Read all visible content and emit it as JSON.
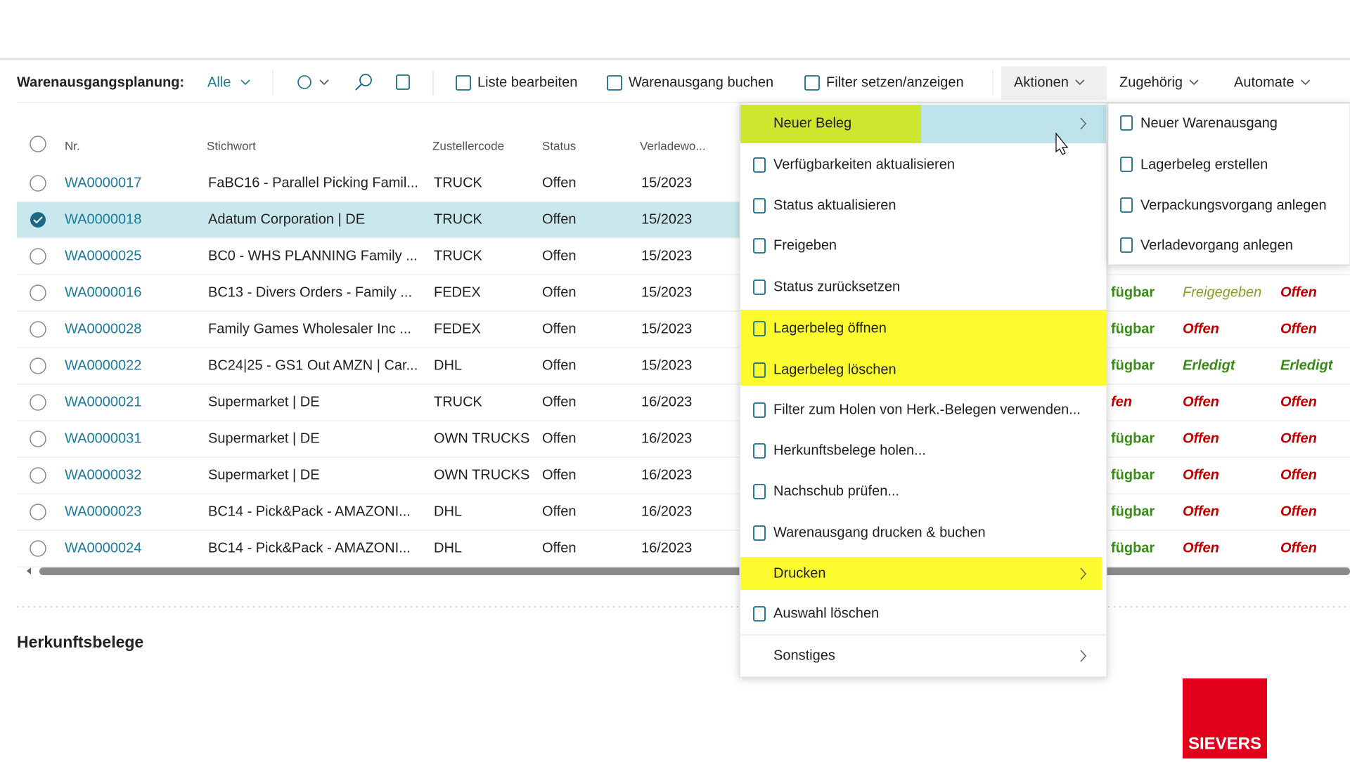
{
  "toolbar": {
    "title": "Warenausgangsplanung:",
    "view": "Alle",
    "buttons": [
      "Liste bearbeiten",
      "Warenausgang buchen",
      "Filter setzen/anzeigen"
    ],
    "menus": [
      "Aktionen",
      "Zugehörig",
      "Automate"
    ]
  },
  "table": {
    "headers": [
      "Nr.",
      "Stichwort",
      "Zustellercode",
      "Status",
      "Verladewo..."
    ],
    "rows": [
      [
        "WA0000017",
        "FaBC16 - Parallel Picking Famil...",
        "TRUCK",
        "Offen",
        "15/2023"
      ],
      [
        "WA0000018",
        "Adatum Corporation | DE",
        "TRUCK",
        "Offen",
        "15/2023"
      ],
      [
        "WA0000025",
        "BC0 - WHS PLANNING Family ...",
        "TRUCK",
        "Offen",
        "15/2023"
      ],
      [
        "WA0000016",
        "BC13 - Divers Orders - Family ...",
        "FEDEX",
        "Offen",
        "15/2023"
      ],
      [
        "WA0000028",
        "Family Games Wholesaler Inc  ...",
        "FEDEX",
        "Offen",
        "15/2023"
      ],
      [
        "WA0000022",
        "BC24|25 - GS1 Out AMZN | Car...",
        "DHL",
        "Offen",
        "15/2023"
      ],
      [
        "WA0000021",
        "Supermarket  | DE",
        "TRUCK",
        "Offen",
        "16/2023"
      ],
      [
        "WA0000031",
        "Supermarket  | DE",
        "OWN TRUCKS",
        "Offen",
        "16/2023"
      ],
      [
        "WA0000032",
        "Supermarket  | DE",
        "OWN TRUCKS",
        "Offen",
        "16/2023"
      ],
      [
        "WA0000023",
        "BC14 - Pick&Pack - AMAZONI...",
        "DHL",
        "Offen",
        "16/2023"
      ],
      [
        "WA0000024",
        "BC14 - Pick&Pack - AMAZONI...",
        "DHL",
        "Offen",
        "16/2023"
      ]
    ],
    "selected_row": 1,
    "right_cells": [
      null,
      null,
      null,
      [
        {
          "text": "fügbar",
          "color": "#3a8a1a"
        },
        {
          "text": "Freigegeben",
          "color": "#8a9a2a"
        },
        {
          "text": "Offen",
          "color": "#c00000"
        }
      ],
      [
        {
          "text": "fügbar",
          "color": "#3a8a1a"
        },
        {
          "text": "Offen",
          "color": "#c00000"
        },
        {
          "text": "Offen",
          "color": "#c00000"
        }
      ],
      [
        {
          "text": "fügbar",
          "color": "#3a8a1a"
        },
        {
          "text": "Erledigt",
          "color": "#3a8a1a"
        },
        {
          "text": "Erledigt",
          "color": "#3a8a1a"
        }
      ],
      [
        {
          "text": "fen",
          "color": "#c00000"
        },
        {
          "text": "Offen",
          "color": "#c00000"
        },
        {
          "text": "Offen",
          "color": "#c00000"
        }
      ],
      [
        {
          "text": "fügbar",
          "color": "#3a8a1a"
        },
        {
          "text": "Offen",
          "color": "#c00000"
        },
        {
          "text": "Offen",
          "color": "#c00000"
        }
      ],
      [
        {
          "text": "fügbar",
          "color": "#3a8a1a"
        },
        {
          "text": "Offen",
          "color": "#c00000"
        },
        {
          "text": "Offen",
          "color": "#c00000"
        }
      ],
      [
        {
          "text": "fügbar",
          "color": "#3a8a1a"
        },
        {
          "text": "Offen",
          "color": "#c00000"
        },
        {
          "text": "Offen",
          "color": "#c00000"
        }
      ],
      [
        {
          "text": "fügbar",
          "color": "#3a8a1a"
        },
        {
          "text": "Offen",
          "color": "#c00000"
        },
        {
          "text": "Offen",
          "color": "#c00000"
        }
      ]
    ]
  },
  "menu": {
    "items": [
      "Neuer Beleg",
      "Verfügbarkeiten aktualisieren",
      "Status aktualisieren",
      "Freigeben",
      "Status zurücksetzen",
      "Lagerbeleg öffnen",
      "Lagerbeleg löschen",
      "Filter zum Holen von Herk.-Belegen verwenden...",
      "Herkunftsbelege holen...",
      "Nachschub prüfen...",
      "Warenausgang drucken & buchen",
      "Drucken",
      "Auswahl löschen",
      "Sonstiges"
    ]
  },
  "submenu": {
    "items": [
      "Neuer Warenausgang",
      "Lagerbeleg erstellen",
      "Verpackungsvorgang anlegen",
      "Verladevorgang anlegen"
    ]
  },
  "section": "Herkunftsbelege",
  "logo": "SIEVERS"
}
